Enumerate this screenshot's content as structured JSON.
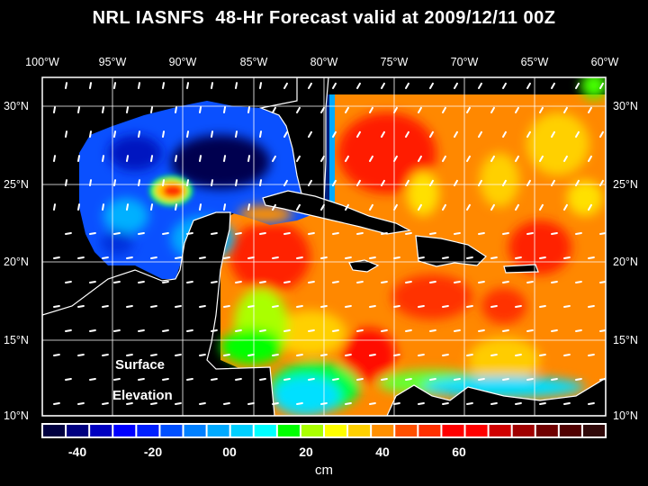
{
  "title": "NRL IASNFS  48-Hr Forecast valid at 2009/12/11 00Z",
  "longitude_labels": [
    "100°W",
    "95°W",
    "90°W",
    "85°W",
    "80°W",
    "75°W",
    "70°W",
    "65°W",
    "60°W"
  ],
  "latitude_labels": [
    "30°N",
    "25°N",
    "20°N",
    "15°N",
    "10°N"
  ],
  "map_annotation": {
    "line1": "Surface",
    "line2": "Elevation"
  },
  "colorbar": {
    "unit": "cm",
    "tick_labels": [
      "-40",
      "-20",
      "00",
      "20",
      "40",
      "60"
    ],
    "colors": [
      "#000040",
      "#000080",
      "#0000c0",
      "#0000ff",
      "#0020ff",
      "#0050ff",
      "#0080ff",
      "#00aaff",
      "#00d0ff",
      "#00ffff",
      "#00ff00",
      "#aaff00",
      "#ffff00",
      "#ffd000",
      "#ff9000",
      "#ff5000",
      "#ff3000",
      "#ff0000",
      "#ff0000",
      "#d00000",
      "#a00000",
      "#700000",
      "#500000",
      "#300808"
    ]
  }
}
